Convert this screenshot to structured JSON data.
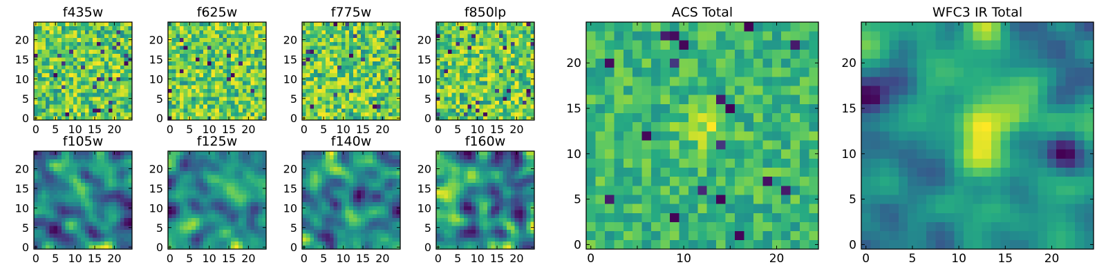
{
  "chart_data": [
    {
      "type": "heatmap",
      "title": "f435w",
      "colormap": "viridis",
      "grid_size": [
        25,
        25
      ],
      "xlim": [
        0,
        24
      ],
      "ylim": [
        0,
        24
      ],
      "xticks": [
        0,
        5,
        10,
        15,
        20
      ],
      "yticks": [
        0,
        5,
        10,
        15,
        20
      ],
      "pattern": "noise",
      "seed": 435
    },
    {
      "type": "heatmap",
      "title": "f625w",
      "colormap": "viridis",
      "grid_size": [
        25,
        25
      ],
      "xlim": [
        0,
        24
      ],
      "ylim": [
        0,
        24
      ],
      "xticks": [
        0,
        5,
        10,
        15,
        20
      ],
      "yticks": [
        0,
        5,
        10,
        15,
        20
      ],
      "pattern": "noise",
      "seed": 625
    },
    {
      "type": "heatmap",
      "title": "f775w",
      "colormap": "viridis",
      "grid_size": [
        25,
        25
      ],
      "xlim": [
        0,
        24
      ],
      "ylim": [
        0,
        24
      ],
      "xticks": [
        0,
        5,
        10,
        15,
        20
      ],
      "yticks": [
        0,
        5,
        10,
        15,
        20
      ],
      "pattern": "noise",
      "seed": 775
    },
    {
      "type": "heatmap",
      "title": "f850lp",
      "colormap": "viridis",
      "grid_size": [
        25,
        25
      ],
      "xlim": [
        0,
        24
      ],
      "ylim": [
        0,
        24
      ],
      "xticks": [
        0,
        5,
        10,
        15,
        20
      ],
      "yticks": [
        0,
        5,
        10,
        15,
        20
      ],
      "pattern": "noise",
      "seed": 850
    },
    {
      "type": "heatmap",
      "title": "f105w",
      "colormap": "viridis",
      "grid_size": [
        25,
        25
      ],
      "xlim": [
        0,
        24
      ],
      "ylim": [
        0,
        24
      ],
      "xticks": [
        0,
        5,
        10,
        15,
        20
      ],
      "yticks": [
        0,
        5,
        10,
        15,
        20
      ],
      "pattern": "smooth",
      "seed": 105
    },
    {
      "type": "heatmap",
      "title": "f125w",
      "colormap": "viridis",
      "grid_size": [
        25,
        25
      ],
      "xlim": [
        0,
        24
      ],
      "ylim": [
        0,
        24
      ],
      "xticks": [
        0,
        5,
        10,
        15,
        20
      ],
      "yticks": [
        0,
        5,
        10,
        15,
        20
      ],
      "pattern": "smooth",
      "seed": 125
    },
    {
      "type": "heatmap",
      "title": "f140w",
      "colormap": "viridis",
      "grid_size": [
        25,
        25
      ],
      "xlim": [
        0,
        24
      ],
      "ylim": [
        0,
        24
      ],
      "xticks": [
        0,
        5,
        10,
        15,
        20
      ],
      "yticks": [
        0,
        5,
        10,
        15,
        20
      ],
      "pattern": "smooth",
      "seed": 140
    },
    {
      "type": "heatmap",
      "title": "f160w",
      "colormap": "viridis",
      "grid_size": [
        25,
        25
      ],
      "xlim": [
        0,
        24
      ],
      "ylim": [
        0,
        24
      ],
      "xticks": [
        0,
        5,
        10,
        15,
        20
      ],
      "yticks": [
        0,
        5,
        10,
        15,
        20
      ],
      "pattern": "smooth",
      "seed": 160
    },
    {
      "type": "heatmap",
      "title": "ACS Total",
      "colormap": "viridis",
      "grid_size": [
        25,
        25
      ],
      "xlim": [
        0,
        24
      ],
      "ylim": [
        0,
        24
      ],
      "xticks": [
        0,
        10,
        20
      ],
      "yticks": [
        0,
        5,
        10,
        15,
        20
      ],
      "minor_xticks": [
        5,
        15
      ],
      "pattern": "combined",
      "seed": 999
    },
    {
      "type": "heatmap",
      "title": "WFC3 IR Total",
      "colormap": "viridis",
      "grid_size": [
        25,
        25
      ],
      "xlim": [
        0,
        24
      ],
      "ylim": [
        0,
        24
      ],
      "xticks": [
        0,
        5,
        10,
        15,
        20
      ],
      "yticks": [
        0,
        5,
        10,
        15,
        20
      ],
      "pattern": "smooth_total",
      "seed": 333
    }
  ]
}
